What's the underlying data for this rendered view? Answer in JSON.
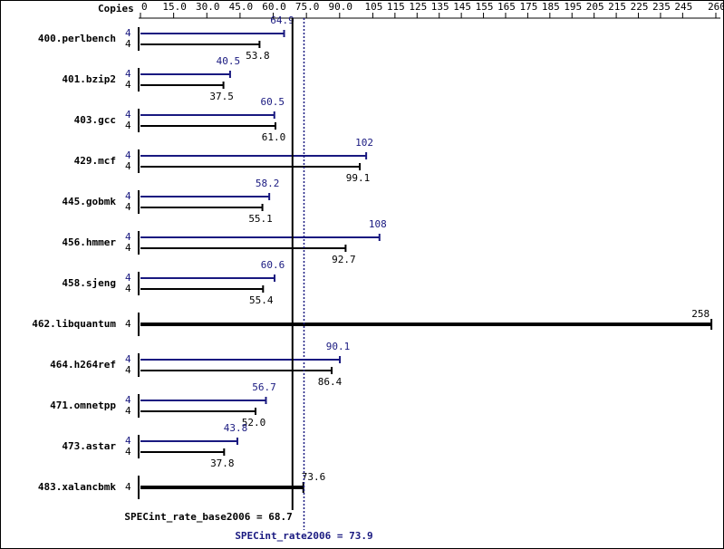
{
  "chart_data": {
    "type": "bar",
    "axis_label": "Copies",
    "categories": [
      "400.perlbench",
      "401.bzip2",
      "403.gcc",
      "429.mcf",
      "445.gobmk",
      "456.hmmer",
      "458.sjeng",
      "462.libquantum",
      "464.h264ref",
      "471.omnetpp",
      "473.astar",
      "483.xalancbmk"
    ],
    "xlim": [
      0,
      260
    ],
    "xticks": [
      0,
      {
        "value": 15,
        "label": "15.0"
      },
      {
        "value": 30,
        "label": "30.0"
      },
      {
        "value": 45,
        "label": "45.0"
      },
      {
        "value": 60,
        "label": "60.0"
      },
      {
        "value": 75,
        "label": "75.0"
      },
      {
        "value": 90,
        "label": "90.0"
      },
      105,
      115,
      125,
      135,
      145,
      155,
      165,
      175,
      185,
      195,
      205,
      215,
      225,
      235,
      245,
      260
    ],
    "series": [
      {
        "color": "#191980",
        "values": [
          64.9,
          40.5,
          60.5,
          102,
          58.2,
          108,
          60.6,
          null,
          90.1,
          56.7,
          43.8,
          null
        ],
        "value_labels": [
          "64.9",
          "40.5",
          "60.5",
          "102",
          "58.2",
          "108",
          "60.6",
          null,
          "90.1",
          "56.7",
          "43.8",
          null
        ],
        "copies": [
          4,
          4,
          4,
          4,
          4,
          4,
          4,
          null,
          4,
          4,
          4,
          null
        ]
      },
      {
        "color": "#000000",
        "values": [
          53.8,
          37.5,
          61,
          99.1,
          55.1,
          92.7,
          55.4,
          258,
          86.4,
          52,
          37.8,
          73.6
        ],
        "value_labels": [
          "53.8",
          "37.5",
          "61.0",
          "99.1",
          "55.1",
          "92.7",
          "55.4",
          "258",
          "86.4",
          "52.0",
          "37.8",
          "73.6"
        ],
        "copies": [
          4,
          4,
          4,
          4,
          4,
          4,
          4,
          4,
          4,
          4,
          4,
          4
        ]
      }
    ],
    "reference_lines": [
      {
        "value": 68.7,
        "label": "SPECint_rate_base2006 = 68.7",
        "color": "#000000",
        "style": "solid"
      },
      {
        "value": 73.9,
        "label": "SPECint_rate2006 = 73.9",
        "color": "#191980",
        "style": "dotted"
      }
    ]
  }
}
